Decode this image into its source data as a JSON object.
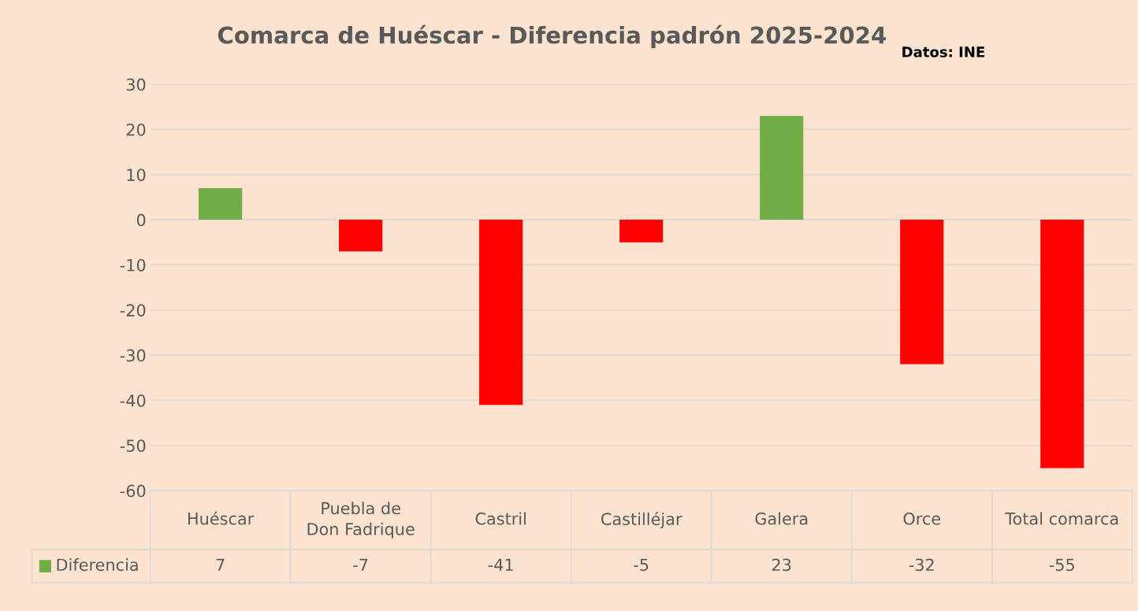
{
  "chart_data": {
    "type": "bar",
    "title": "Comarca de Huéscar - Diferencia padrón 2025-2024",
    "annotations": [
      "Datos: INE"
    ],
    "categories": [
      "Huéscar",
      "Puebla de Don Fadrique",
      "Castril",
      "Castilléjar",
      "Galera",
      "Orce",
      "Total comarca"
    ],
    "series": [
      {
        "name": "Diferencia",
        "color": "#70ad47",
        "colors": [
          "#70ad47",
          "#ff0000",
          "#ff0000",
          "#ff0000",
          "#70ad47",
          "#ff0000",
          "#ff0000"
        ],
        "values": [
          7,
          -7,
          -41,
          -5,
          23,
          -32,
          -55
        ]
      }
    ],
    "ylim": [
      -60,
      30
    ],
    "yticks": [
      -60,
      -50,
      -40,
      -30,
      -20,
      -10,
      0,
      10,
      20,
      30
    ],
    "grid": "y",
    "data_labels": true,
    "legend": "bottom"
  }
}
